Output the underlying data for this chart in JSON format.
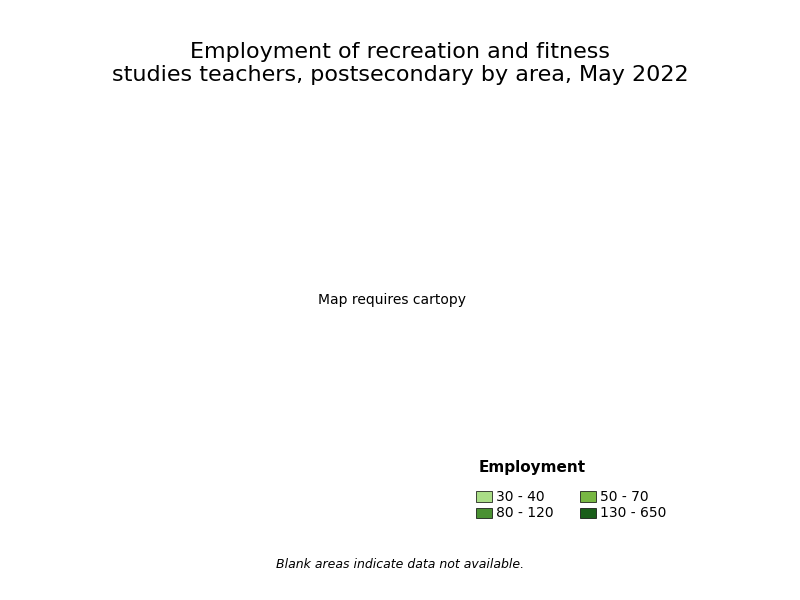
{
  "title": "Employment of recreation and fitness\nstudies teachers, postsecondary by area, May 2022",
  "legend_title": "Employment",
  "legend_labels": [
    "30 - 40",
    "50 - 70",
    "80 - 120",
    "130 - 650"
  ],
  "legend_colors": [
    "#aade87",
    "#78b843",
    "#4a9132",
    "#1a5e1a"
  ],
  "footnote": "Blank areas indicate data not available.",
  "background_color": "#ffffff",
  "title_fontsize": 16,
  "legend_fontsize": 10,
  "footnote_fontsize": 9
}
